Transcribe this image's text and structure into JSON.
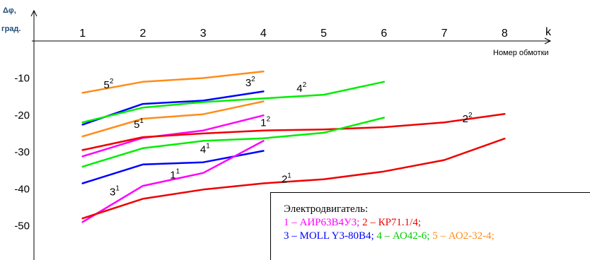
{
  "chart_data": {
    "type": "line",
    "ylabel_lines": [
      "Δφ,",
      "град."
    ],
    "x_axis_symbol": "k",
    "xlabel": "Номер обмотки",
    "x_ticks": [
      1,
      2,
      3,
      4,
      5,
      6,
      7,
      8
    ],
    "y_ticks": [
      -10,
      -20,
      -30,
      -40,
      -50
    ],
    "xlim": [
      0.1,
      8.9
    ],
    "ylim": [
      -52,
      3.5
    ],
    "grid": false,
    "series": [
      {
        "id": "5^2",
        "color": "#ff8c1a",
        "x": [
          1,
          2,
          3,
          4
        ],
        "y": [
          -14,
          -11,
          -10,
          -8.2
        ]
      },
      {
        "id": "3^2",
        "color": "#0000ff",
        "x": [
          1,
          2,
          3,
          4
        ],
        "y": [
          -22.6,
          -17,
          -16.1,
          -13.6
        ]
      },
      {
        "id": "4^2",
        "color": "#00ee00",
        "x": [
          1,
          2,
          3,
          4,
          5,
          6
        ],
        "y": [
          -22,
          -18,
          -16.5,
          -15.5,
          -14.5,
          -11
        ]
      },
      {
        "id": "5^1",
        "color": "#ff8c1a",
        "x": [
          1,
          2,
          3,
          4
        ],
        "y": [
          -25.8,
          -21,
          -19.8,
          -16.3
        ]
      },
      {
        "id": "1^2",
        "color": "#ff00ff",
        "x": [
          1,
          2,
          3,
          4
        ],
        "y": [
          -31.2,
          -26.2,
          -24.2,
          -20.1
        ]
      },
      {
        "id": "2^2",
        "color": "#ee0000",
        "x": [
          1,
          2,
          3,
          4,
          5,
          6,
          7,
          8
        ],
        "y": [
          -29.5,
          -26,
          -25,
          -24.2,
          -23.9,
          -23.3,
          -22,
          -19.7
        ]
      },
      {
        "id": "4^1",
        "color": "#00ee00",
        "x": [
          1,
          2,
          3,
          4,
          5,
          6
        ],
        "y": [
          -34,
          -29,
          -27,
          -26.3,
          -24.8,
          -20.7
        ]
      },
      {
        "id": "3^1",
        "color": "#0000ff",
        "x": [
          1,
          2,
          3,
          4
        ],
        "y": [
          -38.5,
          -33.4,
          -32.8,
          -29.7
        ]
      },
      {
        "id": "1^1",
        "color": "#ff00ff",
        "x": [
          1,
          2,
          3,
          4
        ],
        "y": [
          -49,
          -39.2,
          -35.7,
          -27
        ]
      },
      {
        "id": "2^1",
        "color": "#ee0000",
        "x": [
          1,
          2,
          3,
          4,
          5,
          6,
          7,
          8
        ],
        "y": [
          -48,
          -42.7,
          -40.2,
          -38.5,
          -37.4,
          -35.3,
          -32.2,
          -26.4
        ]
      }
    ],
    "curve_labels": [
      {
        "base": "5",
        "sup": "2",
        "x": 1.35,
        "y": -12.8
      },
      {
        "base": "3",
        "sup": "2",
        "x": 3.7,
        "y": -12.2
      },
      {
        "base": "4",
        "sup": "2",
        "x": 4.55,
        "y": -13.7
      },
      {
        "base": "5",
        "sup": "1",
        "x": 1.85,
        "y": -23.5
      },
      {
        "base": "1",
        "sup": "2",
        "x": 3.95,
        "y": -23.0
      },
      {
        "base": "2",
        "sup": "2",
        "x": 7.3,
        "y": -22.0
      },
      {
        "base": "4",
        "sup": "1",
        "x": 2.95,
        "y": -30.3
      },
      {
        "base": "1",
        "sup": "1",
        "x": 2.45,
        "y": -37.2
      },
      {
        "base": "3",
        "sup": "1",
        "x": 1.45,
        "y": -41.8
      },
      {
        "base": "2",
        "sup": "1",
        "x": 4.3,
        "y": -38.3
      }
    ],
    "legend": {
      "title": "Электродвигатель:",
      "rows": [
        [
          {
            "text": "1 – АИР63В4У3; ",
            "color": "#ff00ff"
          },
          {
            "text": "2 – КР71.1/4;",
            "color": "#ee0000"
          }
        ],
        [
          {
            "text": "3 – MOLL Y3-80B4; ",
            "color": "#0000ff"
          },
          {
            "text": "4 – АО42-6; ",
            "color": "#00cc00"
          },
          {
            "text": "5 – АО2-32-4;",
            "color": "#ff8c1a"
          }
        ]
      ]
    }
  }
}
